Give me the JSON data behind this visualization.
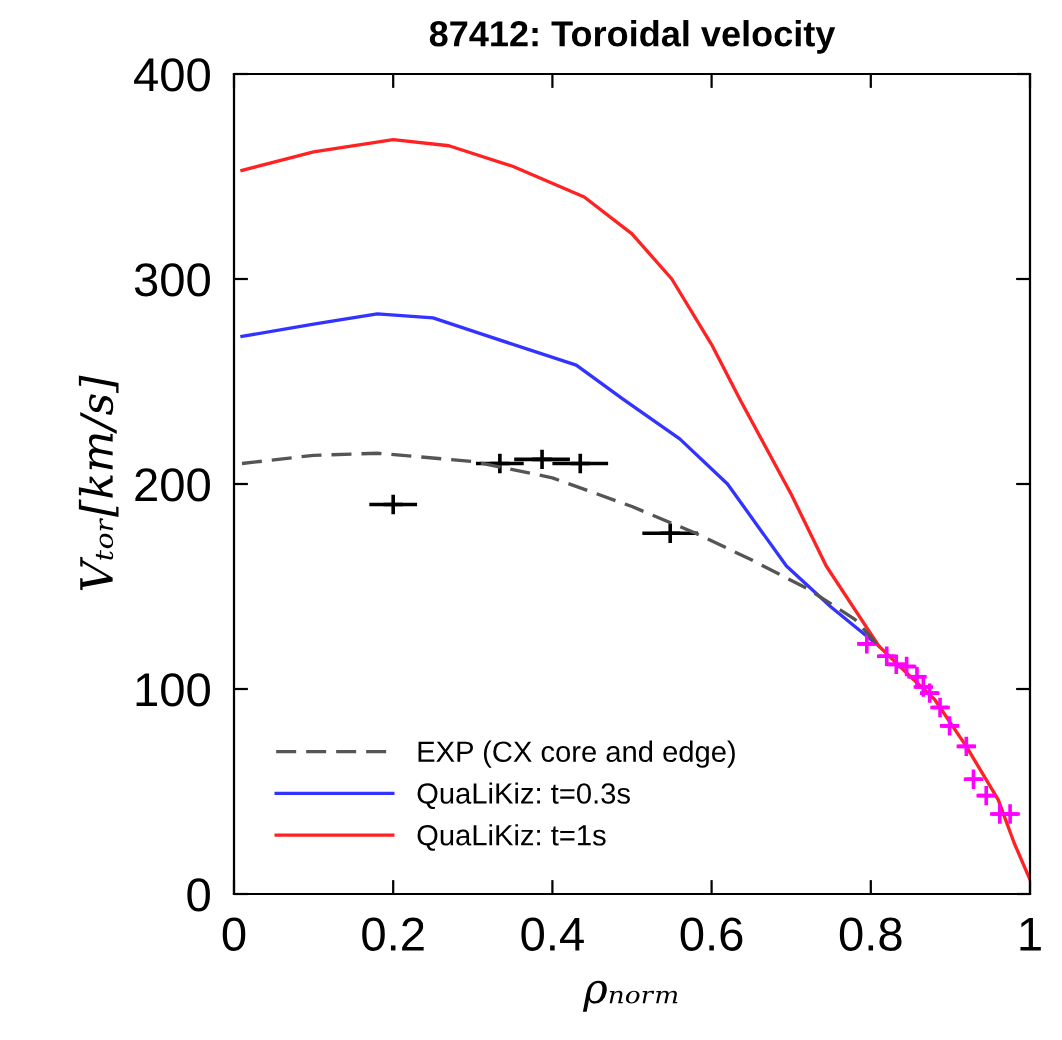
{
  "chart_data": {
    "type": "line",
    "title": "87412: Toroidal velocity",
    "xlabel": "ρₙₒᵣₘ",
    "ylabel": "Vₜₒᵣ[km/s]",
    "xlim": [
      0,
      1
    ],
    "ylim": [
      0,
      400
    ],
    "xticks": [
      0,
      0.2,
      0.4,
      0.6,
      0.8,
      1
    ],
    "yticks": [
      0,
      100,
      200,
      300,
      400
    ],
    "grid": false,
    "legend": "bottom left",
    "series": [
      {
        "name": "EXP (CX core and edge)",
        "line_style": "dashed",
        "color": "#555555",
        "x": [
          0.01,
          0.1,
          0.18,
          0.3,
          0.4,
          0.5,
          0.58,
          0.65,
          0.72,
          0.78,
          0.81
        ],
        "values": [
          210,
          214,
          215,
          211,
          203,
          189,
          176,
          163,
          149,
          134,
          121
        ]
      },
      {
        "name": "QuaLiKiz: t=0.3s",
        "line_style": "solid",
        "color": "#3333ff",
        "x": [
          0.01,
          0.1,
          0.18,
          0.25,
          0.32,
          0.43,
          0.49,
          0.56,
          0.62,
          0.694,
          0.75,
          0.81
        ],
        "values": [
          272,
          278,
          283,
          281,
          272,
          258,
          241,
          222,
          200,
          160,
          140,
          121
        ]
      },
      {
        "name": "QuaLiKiz: t=1s",
        "line_style": "solid",
        "color": "#ff2222",
        "x": [
          0.01,
          0.1,
          0.2,
          0.27,
          0.35,
          0.44,
          0.5,
          0.55,
          0.6,
          0.636,
          0.7,
          0.744,
          0.81,
          0.85,
          0.88,
          0.92,
          0.96,
          0.98,
          1.0
        ],
        "values": [
          353,
          362,
          368,
          365,
          355,
          340,
          322,
          300,
          268,
          241,
          195,
          160,
          121,
          106,
          95,
          72,
          46,
          25,
          7
        ]
      },
      {
        "type": "scatter",
        "marker": "cross",
        "color": "#000000",
        "x": [
          0.2,
          0.334,
          0.387,
          0.435,
          0.548
        ],
        "values": [
          190,
          210,
          212,
          210,
          176
        ],
        "xerrors": [
          0.03,
          0.03,
          0.035,
          0.035,
          0.035
        ]
      },
      {
        "type": "scatter",
        "marker": "cross",
        "color": "#ff00ff",
        "x": [
          0.795,
          0.82,
          0.832,
          0.845,
          0.858,
          0.866,
          0.874,
          0.887,
          0.899,
          0.92,
          0.929,
          0.945,
          0.962,
          0.975
        ],
        "values": [
          122,
          116,
          112,
          111,
          106,
          101,
          98,
          91,
          82,
          72,
          56,
          48,
          39,
          39
        ],
        "xerrors": [
          0.01,
          0.01,
          0.01,
          0.01,
          0.01,
          0.01,
          0.01,
          0.01,
          0.01,
          0.01,
          0.01,
          0.01,
          0.01,
          0.01
        ]
      }
    ]
  }
}
